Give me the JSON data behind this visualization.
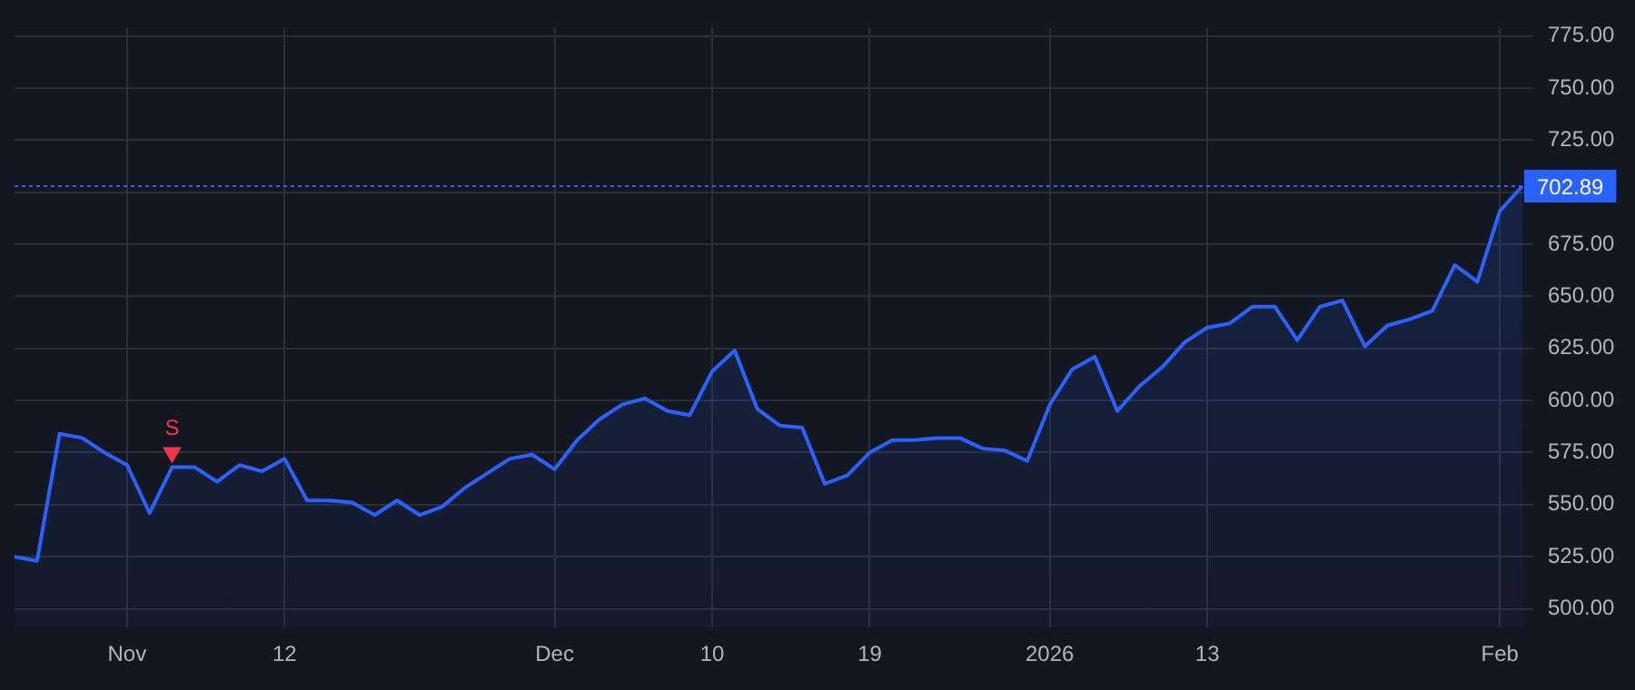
{
  "chart_data": {
    "type": "area",
    "categories": [
      null,
      null,
      null,
      null,
      null,
      "Nov",
      null,
      null,
      null,
      null,
      null,
      null,
      "12",
      null,
      null,
      null,
      null,
      null,
      null,
      null,
      null,
      null,
      null,
      null,
      "Dec",
      null,
      null,
      null,
      null,
      null,
      null,
      "10",
      null,
      null,
      null,
      null,
      null,
      null,
      "19",
      null,
      null,
      null,
      null,
      null,
      null,
      null,
      "2026",
      null,
      null,
      null,
      null,
      null,
      null,
      "13",
      null,
      null,
      null,
      null,
      null,
      null,
      null,
      null,
      null,
      null,
      null,
      null,
      "Feb",
      null
    ],
    "series": [
      {
        "color": "#2962ff",
        "values": [
          525,
          523,
          584,
          582,
          575,
          569,
          546,
          568,
          568,
          561,
          569,
          566,
          572,
          552,
          552,
          551,
          545,
          552,
          545,
          549,
          558,
          565,
          572,
          574,
          567,
          581,
          591,
          598,
          601,
          595,
          593,
          614,
          624,
          596,
          588,
          587,
          560,
          564,
          575,
          581,
          581,
          582,
          582,
          577,
          576,
          571,
          598,
          615,
          621,
          595,
          607,
          616,
          628,
          635,
          637,
          645,
          645,
          629,
          645,
          648,
          626,
          636,
          639,
          643,
          665,
          657,
          691,
          702.89
        ]
      },
      {
        "type": "scatter",
        "color": "#f23645",
        "marker": "triangle",
        "values": [
          null,
          null,
          null,
          null,
          null,
          null,
          null,
          575,
          null,
          null,
          null,
          null,
          null,
          null,
          null,
          null,
          null,
          null,
          null,
          null,
          null,
          null,
          null,
          null,
          null,
          null,
          null,
          null,
          null,
          null,
          null,
          null,
          null,
          null,
          null,
          null,
          null,
          null,
          null,
          null,
          null,
          null,
          null,
          null,
          null,
          null,
          null,
          null,
          null,
          null,
          null,
          null,
          null,
          null,
          null,
          null,
          null,
          null,
          null,
          null,
          null,
          null,
          null,
          null,
          null,
          null,
          null,
          null
        ]
      }
    ],
    "annotations": [
      {
        "text": "S",
        "y": 575
      }
    ],
    "ylim": [
      491,
      779
    ],
    "yticks": [
      {
        "value": 500,
        "label": "500.00"
      },
      {
        "value": 525,
        "label": "525.00"
      },
      {
        "value": 550,
        "label": "550.00"
      },
      {
        "value": 575,
        "label": "575.00"
      },
      {
        "value": 600,
        "label": "600.00"
      },
      {
        "value": 625,
        "label": "625.00"
      },
      {
        "value": 650,
        "label": "650.00"
      },
      {
        "value": 675,
        "label": "675.00"
      },
      {
        "value": 700,
        "label": null
      },
      {
        "value": 725,
        "label": "725.00"
      },
      {
        "value": 750,
        "label": "750.00"
      },
      {
        "value": 775,
        "label": "775.00"
      }
    ],
    "ref_lines": [
      {
        "axis": "y",
        "value": 702.89,
        "label": "702.89",
        "color": "#2962ff",
        "line_style": "dotted"
      }
    ],
    "grid": true,
    "legend": false
  }
}
